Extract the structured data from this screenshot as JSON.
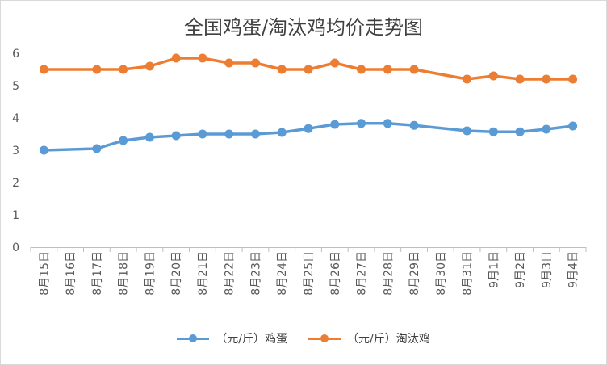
{
  "chart_data": {
    "type": "line",
    "title": "全国鸡蛋/淘汰鸡均价走势图",
    "categories": [
      "8月15日",
      "8月16日",
      "8月17日",
      "8月18日",
      "8月19日",
      "8月20日",
      "8月21日",
      "8月22日",
      "8月23日",
      "8月24日",
      "8月25日",
      "8月26日",
      "8月27日",
      "8月28日",
      "8月29日",
      "8月30日",
      "8月31日",
      "9月1日",
      "9月2日",
      "9月3日",
      "9月4日"
    ],
    "series": [
      {
        "name": "（元/斤）鸡蛋",
        "color": "#5B9BD5",
        "values": [
          3.0,
          null,
          3.05,
          3.3,
          3.4,
          3.45,
          3.5,
          3.5,
          3.5,
          3.55,
          3.67,
          3.8,
          3.83,
          3.83,
          3.77,
          null,
          3.6,
          3.57,
          3.57,
          3.65,
          3.75
        ]
      },
      {
        "name": "（元/斤）淘汰鸡",
        "color": "#ED7D31",
        "values": [
          5.5,
          null,
          5.5,
          5.5,
          5.6,
          5.85,
          5.85,
          5.7,
          5.7,
          5.5,
          5.5,
          5.7,
          5.5,
          5.5,
          5.5,
          null,
          5.2,
          5.3,
          5.2,
          5.2,
          5.2
        ]
      }
    ],
    "ylim": [
      0,
      6
    ],
    "yticks": [
      0,
      1,
      2,
      3,
      4,
      5,
      6
    ],
    "grid": false,
    "legend": "bottom"
  }
}
